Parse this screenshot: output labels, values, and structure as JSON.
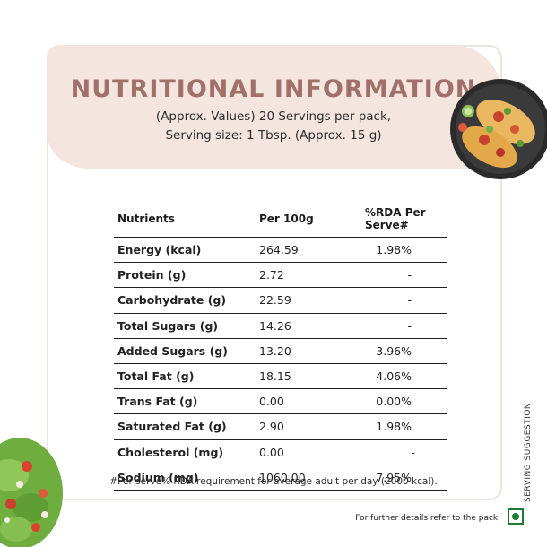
{
  "header": {
    "title": "NUTRITIONAL INFORMATION",
    "subtitle_line1": "(Approx. Values) 20 Servings per pack,",
    "subtitle_line2": "Serving size: 1 Tbsp. (Approx. 15 g)"
  },
  "table": {
    "columns": [
      "Nutrients",
      "Per 100g",
      "%RDA Per Serve#"
    ],
    "rows": [
      {
        "nutrient": "Energy (kcal)",
        "per100g": "264.59",
        "rda": "1.98%"
      },
      {
        "nutrient": "Protein (g)",
        "per100g": "2.72",
        "rda": "-"
      },
      {
        "nutrient": "Carbohydrate (g)",
        "per100g": "22.59",
        "rda": "-"
      },
      {
        "nutrient": "Total Sugars (g)",
        "per100g": "14.26",
        "rda": "-"
      },
      {
        "nutrient": "Added Sugars (g)",
        "per100g": "13.20",
        "rda": "3.96%"
      },
      {
        "nutrient": "Total Fat (g)",
        "per100g": "18.15",
        "rda": "4.06%"
      },
      {
        "nutrient": "Trans Fat (g)",
        "per100g": "0.00",
        "rda": "0.00%"
      },
      {
        "nutrient": "Saturated Fat (g)",
        "per100g": "2.90",
        "rda": "1.98%"
      },
      {
        "nutrient": "Cholesterol (mg)",
        "per100g": "0.00",
        "rda": "-"
      },
      {
        "nutrient": "Sodium (mg)",
        "per100g": "1060.00",
        "rda": "7.95%"
      }
    ]
  },
  "footnote": "#Per serve% RDA requirement for average adult per day (2000 kcal).",
  "side_label": "SERVING SUGGESTION",
  "details_note": "For further details refer to the pack.",
  "colors": {
    "title": "#a0716a",
    "header_band": "#f4e6df",
    "veg_mark": "#1e7b34"
  }
}
